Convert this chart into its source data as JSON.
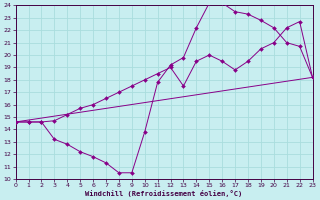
{
  "xlabel": "Windchill (Refroidissement éolien,°C)",
  "line_color": "#880088",
  "bg_color": "#c8eef0",
  "grid_color": "#aadddd",
  "xmin": 0,
  "xmax": 23,
  "ymin": 10,
  "ymax": 24,
  "line1_x": [
    0,
    1,
    2,
    3,
    4,
    5,
    6,
    7,
    8,
    9,
    10,
    11,
    12,
    13,
    14,
    15,
    16,
    17,
    18,
    19,
    20,
    21,
    22,
    23
  ],
  "line1_y": [
    14.6,
    14.6,
    14.6,
    14.7,
    15.2,
    15.7,
    16.0,
    16.5,
    17.0,
    17.5,
    18.0,
    18.5,
    19.0,
    17.5,
    19.5,
    20.0,
    19.5,
    18.8,
    19.5,
    20.5,
    21.0,
    22.2,
    22.7,
    18.2
  ],
  "line2_x": [
    0,
    1,
    2,
    3,
    4,
    5,
    6,
    7,
    8,
    9,
    10,
    11,
    12,
    13,
    14,
    15,
    16,
    17,
    18,
    19,
    20,
    21,
    22,
    23
  ],
  "line2_y": [
    14.6,
    14.6,
    14.6,
    13.2,
    12.8,
    12.2,
    11.8,
    11.3,
    10.5,
    10.5,
    13.8,
    17.8,
    19.2,
    19.8,
    22.2,
    24.2,
    24.2,
    23.5,
    23.3,
    22.8,
    22.2,
    21.0,
    20.7,
    18.2
  ],
  "line3_x": [
    0,
    23
  ],
  "line3_y": [
    14.6,
    18.2
  ]
}
